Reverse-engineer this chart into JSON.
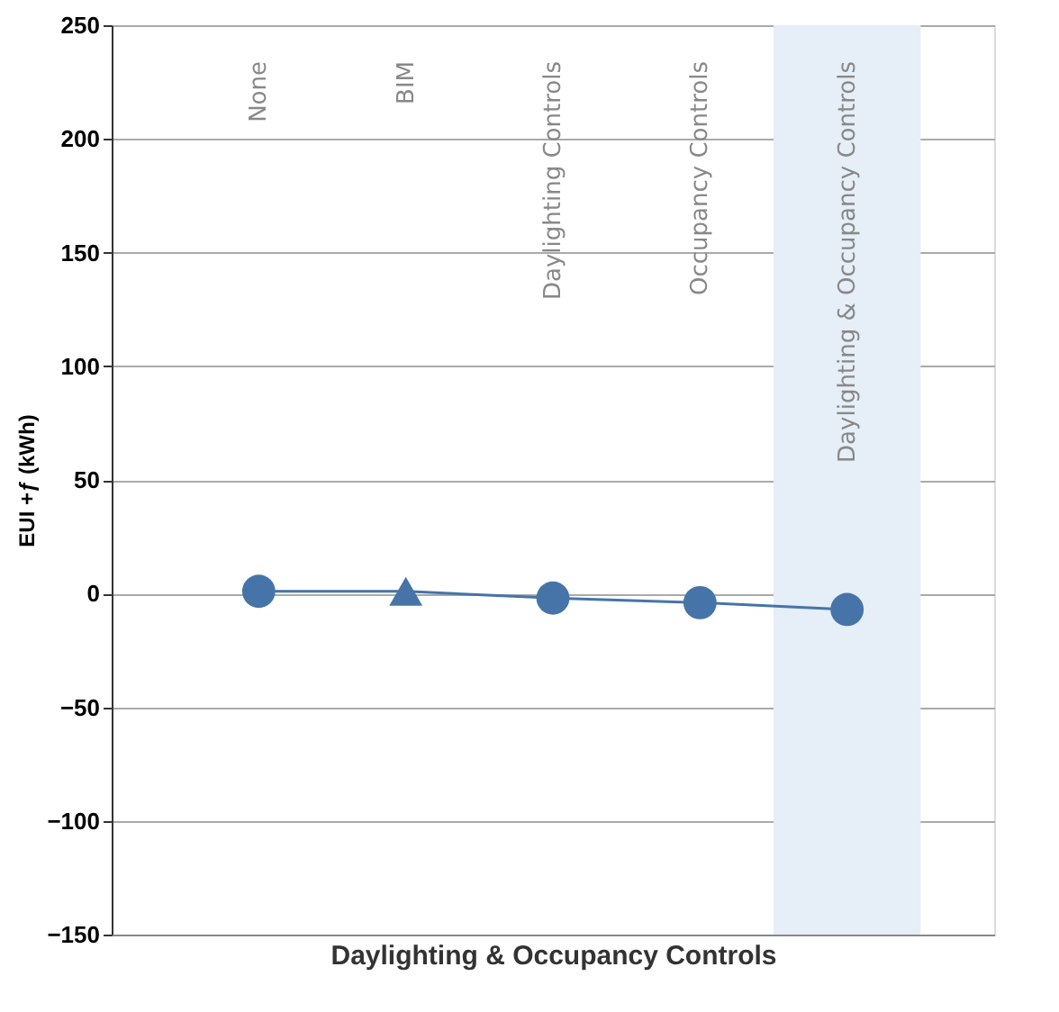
{
  "chart_data": {
    "type": "line",
    "xlabel": "Daylighting & Occupancy Controls",
    "ylabel": "EUI +ƒ (kWh)",
    "categories": [
      "None",
      "BIM",
      "Daylighting Controls",
      "Occupancy Controls",
      "Daylighting & Occupancy Controls"
    ],
    "series": [
      {
        "color": "#4674a8",
        "marker": "none",
        "values": [
          1,
          1,
          -2,
          -4,
          -7
        ]
      },
      {
        "type": "scatter",
        "color": "#4674a8",
        "marker": "circle",
        "x": [
          "None",
          "Daylighting Controls",
          "Occupancy Controls",
          "Daylighting & Occupancy Controls"
        ],
        "values": [
          1,
          -2,
          -4,
          -7
        ]
      },
      {
        "type": "scatter",
        "color": "#4674a8",
        "marker": "triangle",
        "x": [
          "BIM"
        ],
        "values": [
          1
        ]
      }
    ],
    "ylim": [
      -150,
      250
    ],
    "yticks": [
      -150,
      -100,
      -50,
      0,
      50,
      100,
      150,
      200,
      250
    ],
    "grid": "y",
    "bands": [
      {
        "axis": "x",
        "from": "Daylighting & Occupancy Controls",
        "to": "Daylighting & Occupancy Controls",
        "color": "#e6eef7"
      }
    ]
  }
}
